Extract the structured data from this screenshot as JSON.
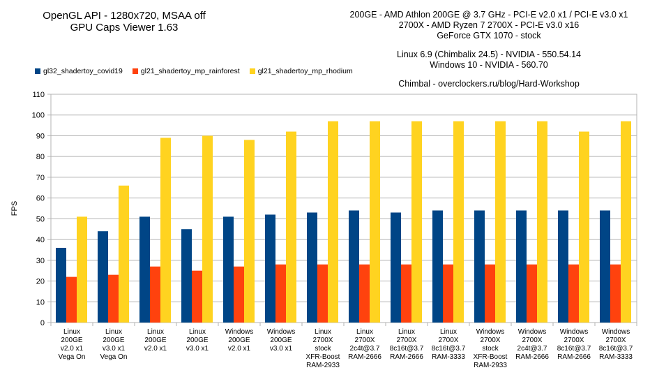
{
  "title_left": [
    "OpenGL API - 1280x720, MSAA off",
    "GPU Caps Viewer 1.63"
  ],
  "title_right": {
    "group1": [
      "200GE - AMD Athlon 200GE @ 3.7 GHz - PCI-E v2.0 x1 / PCI-E v3.0 x1",
      "2700X - AMD Ryzen 7 2700X - PCI-E v3.0 x16",
      "GeForce GTX 1070 - stock"
    ],
    "group2": [
      "Linux 6.9 (Chimbalix 24.5) - NVIDIA - 550.54.14",
      "Windows 10 - NVIDIA - 560.70"
    ],
    "group3": [
      "Chimbal - overclockers.ru/blog/Hard-Workshop"
    ]
  },
  "chart_data": {
    "type": "bar",
    "ylabel": "FPS",
    "xlabel": "",
    "ylim": [
      0,
      110
    ],
    "yticks": [
      0,
      10,
      20,
      30,
      40,
      50,
      60,
      70,
      80,
      90,
      100,
      110
    ],
    "grid": true,
    "legend_position": "top-left",
    "categories": [
      [
        "Linux",
        "200GE",
        "v2.0 x1",
        "Vega On"
      ],
      [
        "Linux",
        "200GE",
        "v3.0 x1",
        "Vega On"
      ],
      [
        "Linux",
        "200GE",
        "v2.0 x1"
      ],
      [
        "Linux",
        "200GE",
        "v3.0 x1"
      ],
      [
        "Windows",
        "200GE",
        "v2.0 x1"
      ],
      [
        "Windows",
        "200GE",
        "v3.0 x1"
      ],
      [
        "Linux",
        "2700X",
        "stock",
        "XFR-Boost",
        "RAM-2933"
      ],
      [
        "Linux",
        "2700X",
        "2c4t@3.7",
        "RAM-2666"
      ],
      [
        "Linux",
        "2700X",
        "8c16t@3.7",
        "RAM-2666"
      ],
      [
        "Linux",
        "2700X",
        "8c16t@3.7",
        "RAM-3333"
      ],
      [
        "Windows",
        "2700X",
        "stock",
        "XFR-Boost",
        "RAM-2933"
      ],
      [
        "Windows",
        "2700X",
        "2c4t@3.7",
        "RAM-2666"
      ],
      [
        "Windows",
        "2700X",
        "8c16t@3.7",
        "RAM-2666"
      ],
      [
        "Windows",
        "2700X",
        "8c16t@3.7",
        "RAM-3333"
      ]
    ],
    "series": [
      {
        "name": "gl32_shadertoy_covid19",
        "color": "#004586",
        "values": [
          36,
          44,
          51,
          45,
          51,
          52,
          53,
          54,
          53,
          54,
          54,
          54,
          54,
          54
        ]
      },
      {
        "name": "gl21_shadertoy_mp_rainforest",
        "color": "#ff420e",
        "values": [
          22,
          23,
          27,
          25,
          27,
          28,
          28,
          28,
          28,
          28,
          28,
          28,
          28,
          28
        ]
      },
      {
        "name": "gl21_shadertoy_mp_rhodium",
        "color": "#ffd320",
        "values": [
          51,
          66,
          89,
          90,
          88,
          92,
          97,
          97,
          97,
          97,
          97,
          97,
          92,
          97
        ]
      }
    ]
  }
}
